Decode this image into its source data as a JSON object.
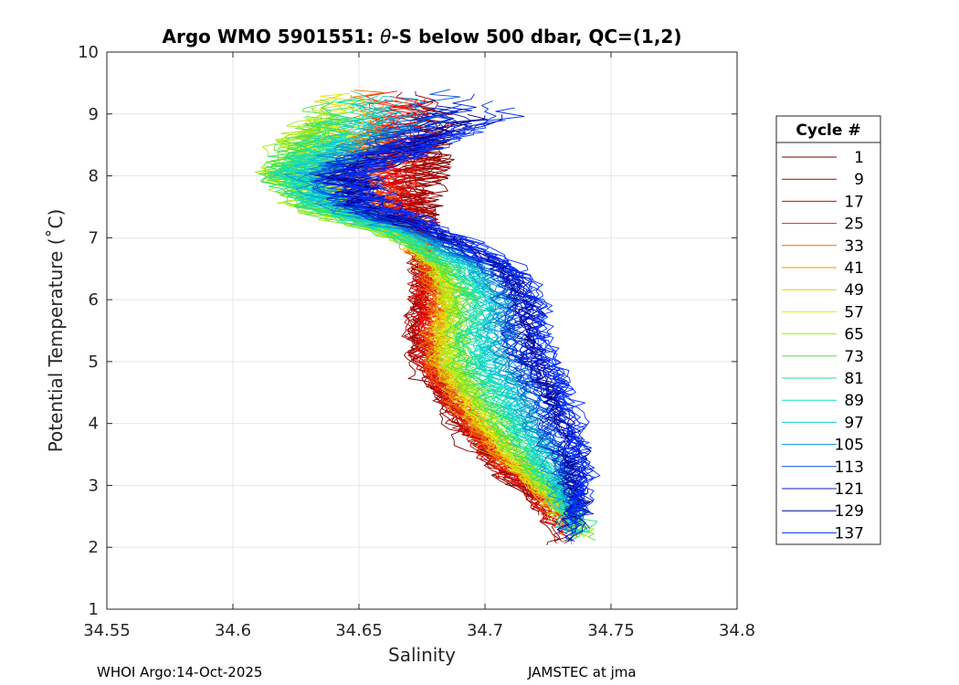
{
  "chart_data": {
    "type": "line",
    "title_prefix": "Argo WMO 5901551: ",
    "title_theta": "θ",
    "title_suffix": "-S below 500 dbar,  QC=(1,2)",
    "xlabel": "Salinity",
    "ylabel": "Potential Temperature (˚C)",
    "xlim": [
      34.55,
      34.8
    ],
    "ylim": [
      1,
      10
    ],
    "xticks": [
      "34.55",
      "34.6",
      "34.65",
      "34.7",
      "34.75",
      "34.8"
    ],
    "yticks": [
      "1",
      "2",
      "3",
      "4",
      "5",
      "6",
      "7",
      "8",
      "9",
      "10"
    ],
    "grid": true,
    "legend_title": "Cycle #",
    "legend_position": "right",
    "series": [
      {
        "name": "1",
        "color": "#800000"
      },
      {
        "name": "9",
        "color": "#b80000"
      },
      {
        "name": "17",
        "color": "#e00000"
      },
      {
        "name": "25",
        "color": "#f02010"
      },
      {
        "name": "33",
        "color": "#ee6a00"
      },
      {
        "name": "41",
        "color": "#e69a00"
      },
      {
        "name": "49",
        "color": "#e6d000"
      },
      {
        "name": "57",
        "color": "#d8ec10"
      },
      {
        "name": "65",
        "color": "#a8ec20"
      },
      {
        "name": "73",
        "color": "#58e040"
      },
      {
        "name": "81",
        "color": "#28e08a"
      },
      {
        "name": "89",
        "color": "#10e0c0"
      },
      {
        "name": "97",
        "color": "#10c6d8"
      },
      {
        "name": "105",
        "color": "#0a90d0"
      },
      {
        "name": "113",
        "color": "#0050e0"
      },
      {
        "name": "121",
        "color": "#0020d0"
      },
      {
        "name": "129",
        "color": "#000098"
      },
      {
        "name": "137",
        "color": "#0030ff"
      }
    ],
    "profile_shape": {
      "theta": [
        9.0,
        8.0,
        7.5,
        7.0,
        6.5,
        6.0,
        5.5,
        5.0,
        4.5,
        4.0,
        3.5,
        3.0,
        2.6,
        2.3
      ],
      "salinity_early": [
        34.68,
        34.678,
        34.677,
        34.678,
        34.674,
        34.673,
        34.672,
        34.674,
        34.682,
        34.69,
        34.7,
        34.714,
        34.724,
        34.729
      ],
      "salinity_mid": [
        34.63,
        34.615,
        34.628,
        34.665,
        34.685,
        34.69,
        34.688,
        34.687,
        34.695,
        34.703,
        34.713,
        34.724,
        34.733,
        34.738
      ],
      "salinity_late": [
        34.71,
        34.65,
        34.66,
        34.69,
        34.712,
        34.722,
        34.722,
        34.728,
        34.732,
        34.735,
        34.738,
        34.74,
        34.738,
        34.733
      ]
    }
  },
  "footer": {
    "left": "WHOI Argo:14-Oct-2025",
    "right": "JAMSTEC at jma"
  }
}
